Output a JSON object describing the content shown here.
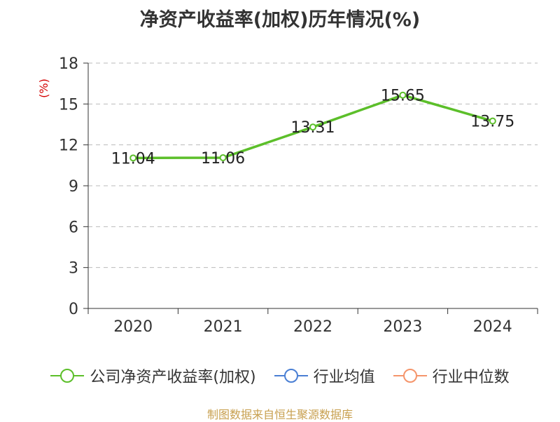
{
  "chart_data": {
    "type": "line",
    "title": "净资产收益率(加权)历年情况(%)",
    "ylabel": "(%)",
    "xlabel": "",
    "categories": [
      "2020",
      "2021",
      "2022",
      "2023",
      "2024"
    ],
    "ylim": [
      0,
      18
    ],
    "yticks": [
      0,
      3,
      6,
      9,
      12,
      15,
      18
    ],
    "grid": true,
    "series": [
      {
        "name": "公司净资产收益率(加权)",
        "values": [
          11.04,
          11.06,
          13.31,
          15.65,
          13.75
        ],
        "labels": [
          "11.04",
          "11.06",
          "13.31",
          "15.65",
          "13.75"
        ],
        "color": "#5cbf2a"
      }
    ],
    "legend": [
      {
        "name": "公司净资产收益率(加权)",
        "color": "#5cbf2a"
      },
      {
        "name": "行业均值",
        "color": "#4a7fd4"
      },
      {
        "name": "行业中位数",
        "color": "#f5956b"
      }
    ],
    "legend_position": "bottom"
  },
  "source_text": "制图数据来自恒生聚源数据库"
}
